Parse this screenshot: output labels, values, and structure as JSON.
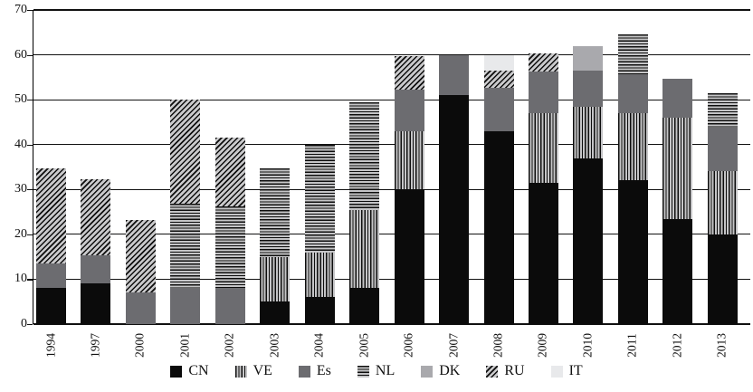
{
  "chart_data": {
    "type": "bar",
    "stacked": true,
    "title": "",
    "xlabel": "",
    "ylabel": "",
    "ylim": [
      0,
      70
    ],
    "yticks": [
      0,
      10,
      20,
      30,
      40,
      50,
      60,
      70
    ],
    "grid": true,
    "legend_position": "bottom",
    "categories": [
      "1994",
      "1997",
      "2000",
      "2001",
      "2002",
      "2003",
      "2004",
      "2005",
      "2006",
      "2007",
      "2008",
      "2009",
      "2010",
      "2011",
      "2012",
      "2013"
    ],
    "series": [
      {
        "name": "CN",
        "fill": "solid",
        "color": "#0b0b0b",
        "values": [
          8,
          9,
          0,
          0,
          0,
          5,
          6,
          8,
          30,
          51,
          43,
          31.5,
          37,
          32,
          23.5,
          20
        ]
      },
      {
        "name": "VE",
        "fill": "vertical-stripes",
        "fg": "#0e0e0e",
        "bg": "#c5c5c7",
        "values": [
          0,
          0,
          0,
          0,
          0,
          10,
          10,
          17.5,
          13,
          0,
          0,
          15.5,
          11.5,
          15,
          22.5,
          14
        ]
      },
      {
        "name": "Es",
        "fill": "solid",
        "color": "#6c6c70",
        "values": [
          5.5,
          6.3,
          7,
          8,
          8,
          0,
          0,
          0,
          9.3,
          9,
          9.7,
          9.3,
          8,
          8.6,
          8.7,
          9.8
        ]
      },
      {
        "name": "NL",
        "fill": "horizontal-stripes",
        "fg": "#0e0e0e",
        "bg": "#c5c5c7",
        "values": [
          0,
          0,
          0,
          18.8,
          18.3,
          19.8,
          24,
          24,
          0,
          0,
          0,
          0,
          0,
          9,
          0,
          7.7
        ]
      },
      {
        "name": "DK",
        "fill": "solid",
        "color": "#a9a9ad",
        "values": [
          0,
          0,
          0,
          0,
          0,
          0,
          0,
          0,
          0,
          0,
          0,
          0,
          5.5,
          0,
          0,
          0
        ]
      },
      {
        "name": "RU",
        "fill": "diagonal-stripes",
        "fg": "#0e0e0e",
        "bg": "#c9c9cb",
        "values": [
          21.2,
          17,
          16.3,
          23.2,
          15.2,
          0,
          0,
          0,
          7.5,
          0,
          3.8,
          4,
          0,
          0,
          0,
          0
        ]
      },
      {
        "name": "IT",
        "fill": "solid",
        "color": "#e8e9eb",
        "values": [
          0,
          0,
          0,
          0,
          0,
          0,
          0,
          0,
          0,
          0,
          3.5,
          0,
          0,
          0,
          0,
          0
        ]
      }
    ],
    "axis_color": "#111111",
    "background_color": "#ffffff"
  }
}
